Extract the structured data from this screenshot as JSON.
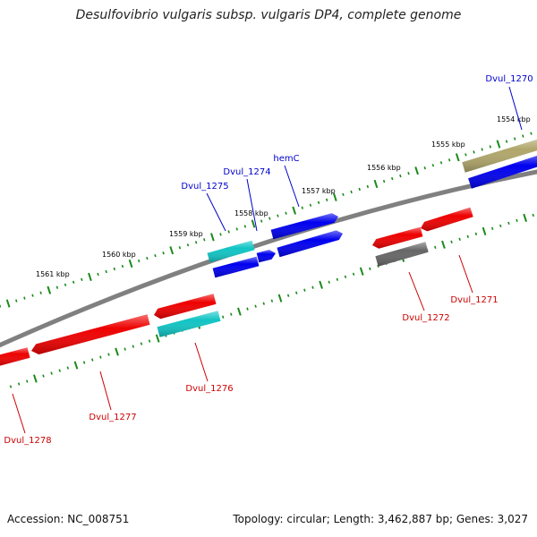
{
  "title": "Desulfovibrio vulgaris subsp. vulgaris DP4, complete genome",
  "footer": {
    "accession": "Accession: NC_008751",
    "stats": "Topology: circular; Length: 3,462,887 bp; Genes: 3,027"
  },
  "colors": {
    "forward_label": "#0000cc",
    "reverse_label": "#cc0000",
    "backbone": "#808080",
    "tick": "#1a8a1a",
    "blue_gene": "#0000ee",
    "cyan_gene": "#11c4c4",
    "red_gene": "#ee0000",
    "gray_gene": "#666666",
    "olive_gene": "#b0a66a"
  },
  "scale_labels": [
    "1561 kbp",
    "1560 kbp",
    "1559 kbp",
    "1558 kbp",
    "1557 kbp",
    "1556 kbp",
    "1555 kbp",
    "1554 kbp"
  ],
  "genes": [
    {
      "id": "Dvul_1270",
      "strand": "forward",
      "color": "olive_gene"
    },
    {
      "id": "Dvul_1270-blue",
      "strand": "forward",
      "color": "blue_gene"
    },
    {
      "id": "hemC",
      "strand": "forward",
      "color": "blue_gene"
    },
    {
      "id": "hemC-inner",
      "strand": "forward",
      "color": "blue_gene"
    },
    {
      "id": "Dvul_1274",
      "strand": "forward",
      "color": "blue_gene"
    },
    {
      "id": "Dvul_1275",
      "strand": "forward",
      "color": "cyan_gene"
    },
    {
      "id": "Dvul_1275-blue",
      "strand": "forward",
      "color": "blue_gene"
    },
    {
      "id": "Dvul_1271",
      "strand": "reverse",
      "color": "red_gene"
    },
    {
      "id": "Dvul_1272",
      "strand": "reverse",
      "color": "red_gene"
    },
    {
      "id": "Dvul_1272-gray",
      "strand": "reverse",
      "color": "gray_gene"
    },
    {
      "id": "Dvul_1276",
      "strand": "reverse",
      "color": "red_gene"
    },
    {
      "id": "Dvul_1276-cyan",
      "strand": "reverse",
      "color": "cyan_gene"
    },
    {
      "id": "Dvul_1277",
      "strand": "reverse",
      "color": "red_gene"
    },
    {
      "id": "Dvul_1278",
      "strand": "reverse",
      "color": "red_gene"
    }
  ],
  "gene_labels": [
    {
      "text": "Dvul_1270",
      "strand": "forward"
    },
    {
      "text": "hemC",
      "strand": "forward"
    },
    {
      "text": "Dvul_1274",
      "strand": "forward"
    },
    {
      "text": "Dvul_1275",
      "strand": "forward"
    },
    {
      "text": "Dvul_1271",
      "strand": "reverse"
    },
    {
      "text": "Dvul_1272",
      "strand": "reverse"
    },
    {
      "text": "Dvul_1276",
      "strand": "reverse"
    },
    {
      "text": "Dvul_1277",
      "strand": "reverse"
    },
    {
      "text": "Dvul_1278",
      "strand": "reverse"
    }
  ]
}
